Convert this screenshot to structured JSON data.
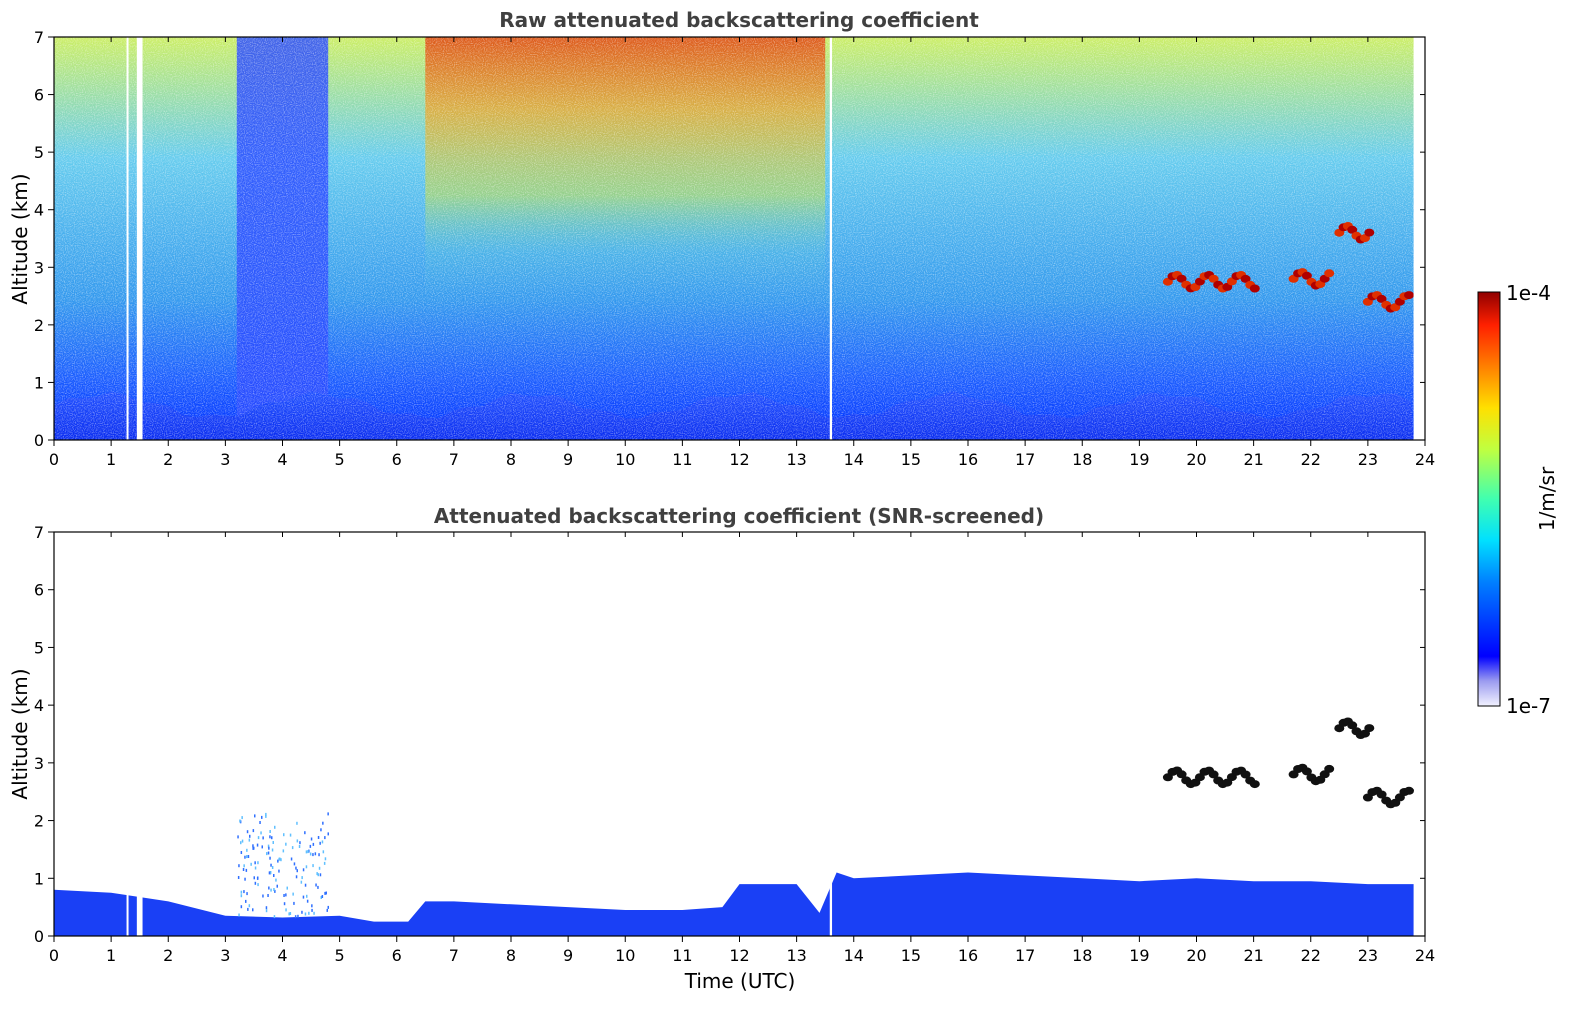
{
  "chart_data": [
    {
      "type": "heatmap",
      "title": "Raw attenuated backscattering coefficient",
      "xlabel": "",
      "ylabel": "Altitude (km)",
      "xlim": [
        0,
        24
      ],
      "ylim": [
        0,
        7
      ],
      "x_ticks": [
        "0",
        "1",
        "2",
        "3",
        "4",
        "5",
        "6",
        "7",
        "8",
        "9",
        "10",
        "11",
        "12",
        "13",
        "14",
        "15",
        "16",
        "17",
        "18",
        "19",
        "20",
        "21",
        "22",
        "23",
        "24"
      ],
      "y_ticks": [
        "0",
        "1",
        "2",
        "3",
        "4",
        "5",
        "6",
        "7"
      ],
      "data_end_time": 23.8,
      "data_gaps": [
        [
          1.27,
          1.3
        ],
        [
          1.45,
          1.55
        ],
        [
          13.58,
          13.62
        ]
      ],
      "colormap": "jet",
      "color_scale": "log",
      "features": [
        {
          "kind": "boundary_layer",
          "t_start": 0,
          "t_end": 23.8,
          "alt_top_km": 0.8
        },
        {
          "kind": "low_snr_column",
          "t_start": 3.2,
          "t_end": 4.8,
          "alt_range_km": [
            0,
            7
          ]
        },
        {
          "kind": "high_background",
          "t_start": 6.5,
          "t_end": 13.5,
          "alt_range_km": [
            2,
            7
          ]
        },
        {
          "kind": "cloud",
          "t_start": 19.5,
          "t_end": 21.1,
          "alt_km": 2.75
        },
        {
          "kind": "cloud",
          "t_start": 22.5,
          "t_end": 23.1,
          "alt_km": 3.6
        },
        {
          "kind": "cloud",
          "t_start": 21.7,
          "t_end": 22.4,
          "alt_km": 2.8
        },
        {
          "kind": "cloud",
          "t_start": 23.0,
          "t_end": 23.8,
          "alt_km": 2.4
        }
      ]
    },
    {
      "type": "heatmap",
      "title": "Attenuated backscattering coefficient (SNR-screened)",
      "xlabel": "Time (UTC)",
      "ylabel": "Altitude (km)",
      "xlim": [
        0,
        24
      ],
      "ylim": [
        0,
        7
      ],
      "x_ticks": [
        "0",
        "1",
        "2",
        "3",
        "4",
        "5",
        "6",
        "7",
        "8",
        "9",
        "10",
        "11",
        "12",
        "13",
        "14",
        "15",
        "16",
        "17",
        "18",
        "19",
        "20",
        "21",
        "22",
        "23",
        "24"
      ],
      "y_ticks": [
        "0",
        "1",
        "2",
        "3",
        "4",
        "5",
        "6",
        "7"
      ],
      "boundary_layer_top_km": [
        [
          0,
          0.8
        ],
        [
          1,
          0.75
        ],
        [
          2,
          0.6
        ],
        [
          3,
          0.35
        ],
        [
          4,
          0.32
        ],
        [
          5,
          0.35
        ],
        [
          5.6,
          0.25
        ],
        [
          6.2,
          0.25
        ],
        [
          6.5,
          0.6
        ],
        [
          7,
          0.6
        ],
        [
          8,
          0.55
        ],
        [
          9,
          0.5
        ],
        [
          10,
          0.45
        ],
        [
          11,
          0.45
        ],
        [
          11.7,
          0.5
        ],
        [
          12,
          0.9
        ],
        [
          13,
          0.9
        ],
        [
          13.4,
          0.4
        ],
        [
          13.7,
          1.1
        ],
        [
          14,
          1.0
        ],
        [
          15,
          1.05
        ],
        [
          16,
          1.1
        ],
        [
          17,
          1.05
        ],
        [
          18,
          1.0
        ],
        [
          19,
          0.95
        ],
        [
          20,
          1.0
        ],
        [
          21,
          0.95
        ],
        [
          22,
          0.95
        ],
        [
          23,
          0.9
        ],
        [
          23.8,
          0.9
        ]
      ]
    }
  ],
  "colorbar": {
    "label": "1/m/sr",
    "max_label": "1e-4",
    "min_label": "1e-7",
    "colormap": "jet"
  }
}
